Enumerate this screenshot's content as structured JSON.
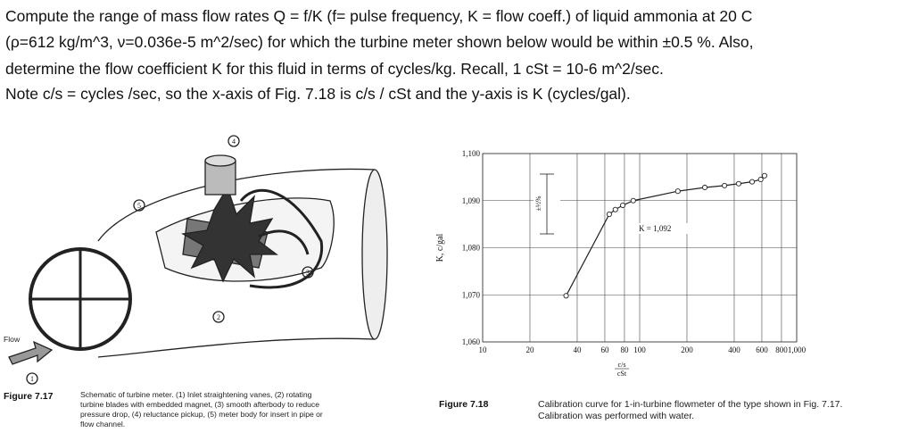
{
  "problem": {
    "lines": [
      "Compute the range of mass flow rates Q = f/K (f= pulse frequency, K = flow coeff.)  of liquid ammonia at 20 C",
      "(ρ=612 kg/m^3, ν=0.036e-5 m^2/sec) for which the turbine meter shown below would be within ±0.5 %. Also,",
      "determine the flow coefficient K for this fluid in terms of cycles/kg. Recall, 1 cSt = 10-6 m^2/sec.",
      "Note c/s = cycles /sec, so the x-axis of Fig. 7.18 is c/s / cSt and the y-axis is K (cycles/gal)."
    ]
  },
  "figure_7_17": {
    "callouts": [
      "1",
      "2",
      "3",
      "4",
      "5"
    ],
    "flow_label": "Flow",
    "label": "Figure 7.17",
    "caption_lines": [
      "Schematic of turbine meter. (1) Inlet straightening vanes, (2) rotating",
      "turbine blades with embedded magnet, (3) smooth afterbody to reduce",
      "pressure drop, (4) reluctance pickup, (5) meter body for insert in pipe or",
      "flow channel."
    ]
  },
  "figure_7_18": {
    "label": "Figure 7.18",
    "caption_lines": [
      "Calibration curve for 1-in-turbine flowmeter of the type shown in Fig. 7.17.",
      "Calibration was performed with water."
    ]
  },
  "chart_data": {
    "type": "line",
    "ylabel": "K, c/gal",
    "xlabel": [
      "c/s",
      "cSt"
    ],
    "x": [
      34,
      64,
      70,
      78,
      91,
      175,
      260,
      347,
      427,
      520,
      590,
      624
    ],
    "series": [
      {
        "color": "#222222",
        "values": [
          1069.8,
          1087.1,
          1088.1,
          1089.0,
          1090.0,
          1092.0,
          1092.8,
          1093.2,
          1093.6,
          1094.0,
          1094.5,
          1095.3
        ]
      }
    ],
    "xscale": "log",
    "xlim": [
      10,
      1000
    ],
    "xticks": [
      10,
      20,
      40,
      60,
      80,
      100,
      200,
      400,
      600,
      800,
      {
        "value": 1000,
        "label": "1,000"
      }
    ],
    "ylim": [
      1060,
      1100
    ],
    "yticks": [
      {
        "value": 1060,
        "label": "1,060"
      },
      {
        "value": 1070,
        "label": "1,070"
      },
      {
        "value": 1080,
        "label": "1,080"
      },
      {
        "value": 1090,
        "label": "1,090"
      },
      {
        "value": 1100,
        "label": "1,100"
      }
    ],
    "grid": true,
    "annotations": [
      "±½%",
      "K = 1,092"
    ]
  }
}
